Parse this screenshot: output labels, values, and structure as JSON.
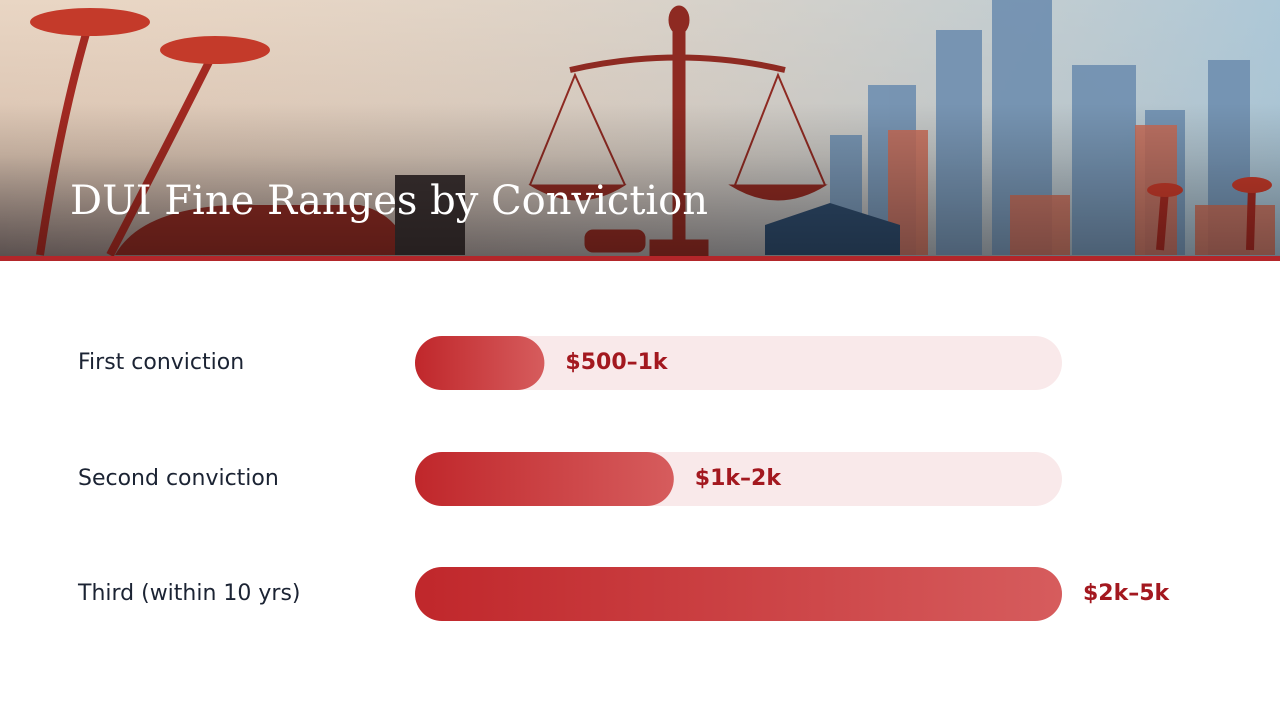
{
  "chart_data": {
    "type": "bar",
    "orientation": "horizontal",
    "title": "DUI Fine Ranges by Conviction",
    "categories": [
      "First conviction",
      "Second conviction",
      "Third (within 10 yrs)"
    ],
    "values": [
      1000,
      2000,
      5000
    ],
    "value_labels": [
      "$500–1k",
      "$1k–2k",
      "$2k–5k"
    ],
    "xlim": [
      0,
      5000
    ],
    "color": "#c62a2f"
  }
}
